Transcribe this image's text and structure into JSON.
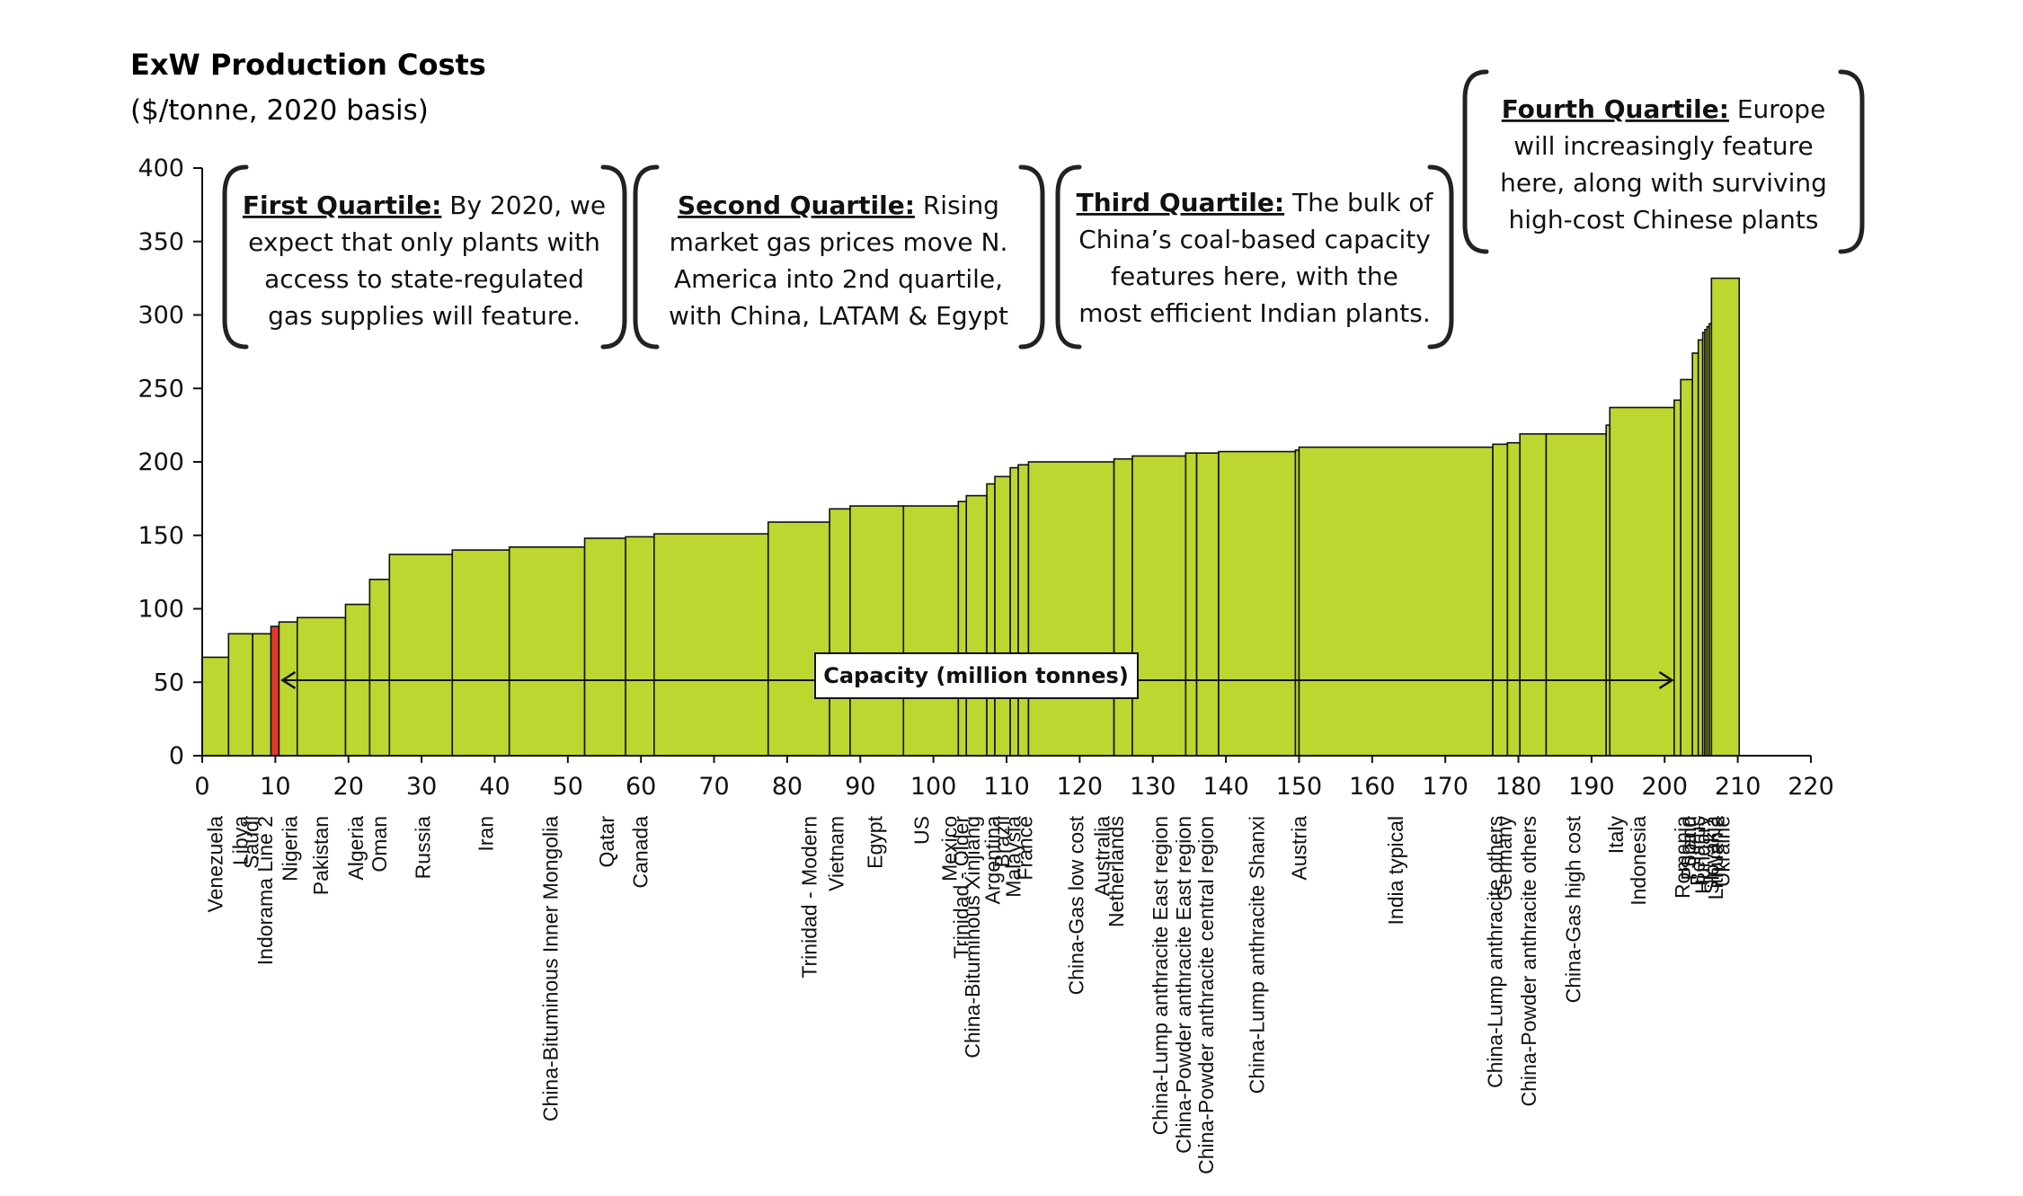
{
  "chart_data": {
    "type": "bar",
    "title": "ExW Production Costs",
    "subtitle": "($/tonne,  2020 basis)",
    "xlabel": "Capacity (million tonnes)",
    "ylabel": "",
    "xlim": [
      0,
      220
    ],
    "ylim": [
      0,
      400
    ],
    "xticks": [
      0,
      10,
      20,
      30,
      40,
      50,
      60,
      70,
      80,
      90,
      100,
      110,
      120,
      130,
      140,
      150,
      160,
      170,
      180,
      190,
      200,
      210,
      220
    ],
    "yticks": [
      0,
      50,
      100,
      150,
      200,
      250,
      300,
      350,
      400
    ],
    "bar_color": "#bdd630",
    "highlight_color": "#e03a2a",
    "edge_color": "#111111",
    "grid": false,
    "segments": [
      {
        "name": "Venezuela",
        "x0": 0,
        "x1": 3.6,
        "value": 67
      },
      {
        "name": "Libya",
        "x0": 3.6,
        "x1": 6.9,
        "value": 83
      },
      {
        "name": "Saudi",
        "x0": 6.9,
        "x1": 9.4,
        "value": 83
      },
      {
        "name": "Indorama Line 2",
        "x0": 9.4,
        "x1": 10.5,
        "value": 88,
        "highlight": true
      },
      {
        "name": "Nigeria",
        "x0": 10.5,
        "x1": 13.0,
        "value": 91
      },
      {
        "name": "Pakistan",
        "x0": 13.0,
        "x1": 19.6,
        "value": 94
      },
      {
        "name": "Algeria",
        "x0": 19.6,
        "x1": 22.9,
        "value": 103
      },
      {
        "name": "Oman",
        "x0": 22.9,
        "x1": 25.6,
        "value": 120
      },
      {
        "name": "Russia",
        "x0": 25.6,
        "x1": 34.2,
        "value": 137
      },
      {
        "name": "Iran",
        "x0": 34.2,
        "x1": 42.0,
        "value": 140
      },
      {
        "name": "China-Bituminous Inner Mongolia",
        "x0": 42.0,
        "x1": 52.3,
        "value": 142
      },
      {
        "name": "Qatar",
        "x0": 52.3,
        "x1": 57.9,
        "value": 148
      },
      {
        "name": "Canada",
        "x0": 57.9,
        "x1": 61.8,
        "value": 149
      },
      {
        "name": "",
        "x0": 61.8,
        "x1": 77.4,
        "value": 151
      },
      {
        "name": "Trinidad - Modern",
        "x0": 77.4,
        "x1": 85.8,
        "value": 159
      },
      {
        "name": "Vietnam",
        "x0": 85.8,
        "x1": 88.6,
        "value": 168
      },
      {
        "name": "Egypt",
        "x0": 88.6,
        "x1": 95.9,
        "value": 170
      },
      {
        "name": "US",
        "x0": 95.9,
        "x1": 103.4,
        "value": 170
      },
      {
        "name": "Mexico",
        "x0": 103.4,
        "x1": 104.5,
        "value": 173
      },
      {
        "name": "Trinidad - Older",
        "x0": 104.5,
        "x1": 107.3,
        "value": 177
      },
      {
        "name": "China-Bituminous Xinjiang",
        "x0": 107.3,
        "x1": 108.4,
        "value": 185
      },
      {
        "name": "Argentina",
        "x0": 108.4,
        "x1": 110.5,
        "value": 190
      },
      {
        "name": "Brazil",
        "x0": 110.5,
        "x1": 111.6,
        "value": 196
      },
      {
        "name": "Malaysia",
        "x0": 111.6,
        "x1": 113.0,
        "value": 198
      },
      {
        "name": "France",
        "x0": 113.0,
        "x1": 124.7,
        "value": 200
      },
      {
        "name": "China-Gas low cost",
        "x0": 124.7,
        "x1": 124.7,
        "value": 200
      },
      {
        "name": "Australia",
        "x0": 124.7,
        "x1": 127.2,
        "value": 202
      },
      {
        "name": "Netherlands",
        "x0": 127.2,
        "x1": 134.5,
        "value": 204
      },
      {
        "name": "China-Lump anthracite East region",
        "x0": 134.5,
        "x1": 136.0,
        "value": 206
      },
      {
        "name": "China-Powder anthracite East region",
        "x0": 136.0,
        "x1": 139.0,
        "value": 206
      },
      {
        "name": "China-Powder anthracite central region",
        "x0": 139.0,
        "x1": 149.5,
        "value": 207
      },
      {
        "name": "China-Lump anthracite Shanxi",
        "x0": 149.5,
        "x1": 150.0,
        "value": 208
      },
      {
        "name": "Austria",
        "x0": 150.0,
        "x1": 176.5,
        "value": 210
      },
      {
        "name": "India typical",
        "x0": 176.5,
        "x1": 178.5,
        "value": 212
      },
      {
        "name": "Germany",
        "x0": 178.5,
        "x1": 180.2,
        "value": 213
      },
      {
        "name": "China-Lump anthracite others",
        "x0": 180.2,
        "x1": 183.8,
        "value": 219
      },
      {
        "name": "China-Powder anthracite others",
        "x0": 183.8,
        "x1": 192.0,
        "value": 219
      },
      {
        "name": "China-Gas high cost",
        "x0": 192.0,
        "x1": 192.5,
        "value": 225
      },
      {
        "name": "Italy",
        "x0": 192.5,
        "x1": 201.3,
        "value": 237
      },
      {
        "name": "Indonesia",
        "x0": 201.3,
        "x1": 202.2,
        "value": 242
      },
      {
        "name": "Romania",
        "x0": 202.2,
        "x1": 203.8,
        "value": 256
      },
      {
        "name": "Poland",
        "x0": 203.8,
        "x1": 204.6,
        "value": 274
      },
      {
        "name": "Spain",
        "x0": 204.6,
        "x1": 205.2,
        "value": 283
      },
      {
        "name": "Belarus",
        "x0": 205.2,
        "x1": 205.5,
        "value": 288
      },
      {
        "name": "Hungary",
        "x0": 205.5,
        "x1": 205.8,
        "value": 290
      },
      {
        "name": "Slovakia",
        "x0": 205.8,
        "x1": 206.1,
        "value": 292
      },
      {
        "name": "Lithuania",
        "x0": 206.1,
        "x1": 206.4,
        "value": 294
      },
      {
        "name": "Ukraine",
        "x0": 206.4,
        "x1": 210.2,
        "value": 325
      }
    ],
    "category_labels": [
      {
        "text": "Venezuela",
        "x": 1.8
      },
      {
        "text": "Libya",
        "x": 5.2
      },
      {
        "text": "Saudi",
        "x": 6.7
      },
      {
        "text": "Indorama Line 2",
        "x": 8.6
      },
      {
        "text": "Nigeria",
        "x": 12.0
      },
      {
        "text": "Pakistan",
        "x": 16.2
      },
      {
        "text": "Algeria",
        "x": 21.0
      },
      {
        "text": "Oman",
        "x": 24.2
      },
      {
        "text": "Russia",
        "x": 30.2
      },
      {
        "text": "Iran",
        "x": 38.8
      },
      {
        "text": "China-Bituminous Inner Mongolia",
        "x": 47.6
      },
      {
        "text": "Qatar",
        "x": 55.3
      },
      {
        "text": "Canada",
        "x": 59.9
      },
      {
        "text": "Trinidad - Modern",
        "x": 83.0
      },
      {
        "text": "Vietnam",
        "x": 86.7
      },
      {
        "text": "Egypt",
        "x": 92.0
      },
      {
        "text": "US",
        "x": 98.4
      },
      {
        "text": "Mexico",
        "x": 102.2
      },
      {
        "text": "Trinidad - Older",
        "x": 103.8
      },
      {
        "text": "China-Bituminous Xinjiang",
        "x": 105.3
      },
      {
        "text": "Argentina",
        "x": 108.1
      },
      {
        "text": "Brazil",
        "x": 109.4
      },
      {
        "text": "Malaysia",
        "x": 110.9
      },
      {
        "text": "France",
        "x": 112.5
      },
      {
        "text": "China-Gas low cost",
        "x": 119.5
      },
      {
        "text": "Australia",
        "x": 123.1
      },
      {
        "text": "Netherlands",
        "x": 125.0
      },
      {
        "text": "China-Lump anthracite East region",
        "x": 131.0
      },
      {
        "text": "China-Powder anthracite East region",
        "x": 134.2
      },
      {
        "text": "China-Powder anthracite central region",
        "x": 137.3
      },
      {
        "text": "China-Lump anthracite Shanxi",
        "x": 144.2
      },
      {
        "text": "Austria",
        "x": 150.0
      },
      {
        "text": "India typical",
        "x": 163.2
      },
      {
        "text": "Germany",
        "x": 178.1
      },
      {
        "text": "China-Lump anthracite others",
        "x": 176.8
      },
      {
        "text": "China-Powder anthracite others",
        "x": 181.4
      },
      {
        "text": "China-Gas high cost",
        "x": 187.5
      },
      {
        "text": "Italy",
        "x": 193.3
      },
      {
        "text": "Indonesia",
        "x": 196.4
      },
      {
        "text": "Romania",
        "x": 202.4
      },
      {
        "text": "Spain",
        "x": 203.3
      },
      {
        "text": "Poland",
        "x": 203.3
      },
      {
        "text": "Belarus",
        "x": 204.5
      },
      {
        "text": "Hungary",
        "x": 205.2
      },
      {
        "text": "Slovakia",
        "x": 206.4
      },
      {
        "text": "Lithuania",
        "x": 207.0
      },
      {
        "text": "Ukraine",
        "x": 207.9
      }
    ],
    "annotations": [
      {
        "heading": "First Quartile:",
        "lines": [
          " By 2020, we",
          "expect that only plants with",
          "access to state-regulated",
          "gas supplies will feature."
        ]
      },
      {
        "heading": "Second Quartile:",
        "lines": [
          " Rising",
          "market gas prices move N.",
          "America into 2nd quartile,",
          "with China, LATAM & Egypt"
        ]
      },
      {
        "heading": "Third Quartile:",
        "lines": [
          " The bulk of",
          "China’s coal-based capacity",
          "features here, with the",
          "most efficient Indian plants."
        ]
      },
      {
        "heading": "Fourth Quartile:",
        "lines": [
          " Europe",
          "will increasingly feature",
          "here, along with surviving",
          "high-cost Chinese plants"
        ]
      }
    ],
    "arrow": {
      "x_start": 11,
      "x_end": 201,
      "value": 52
    }
  }
}
